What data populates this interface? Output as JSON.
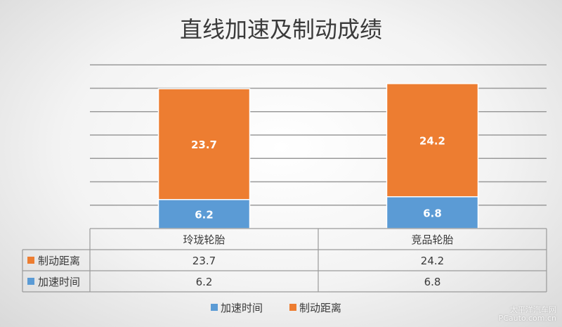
{
  "chart_data": {
    "type": "bar",
    "stacked": true,
    "title": "直线加速及制动成绩",
    "categories": [
      "玲珑轮胎",
      "竞品轮胎"
    ],
    "series": [
      {
        "name": "加速时间",
        "values": [
          6.2,
          6.8
        ],
        "color": "#5b9bd5"
      },
      {
        "name": "制动距离",
        "values": [
          23.7,
          24.2
        ],
        "color": "#ed7d31"
      }
    ],
    "ylim": [
      0,
      35
    ],
    "grid": true,
    "y_tick_labels_shown": false,
    "data_table": true,
    "legend_position": "bottom"
  },
  "watermark": {
    "line1": "太平洋汽车网",
    "line2": "PCauto.com.cn"
  }
}
